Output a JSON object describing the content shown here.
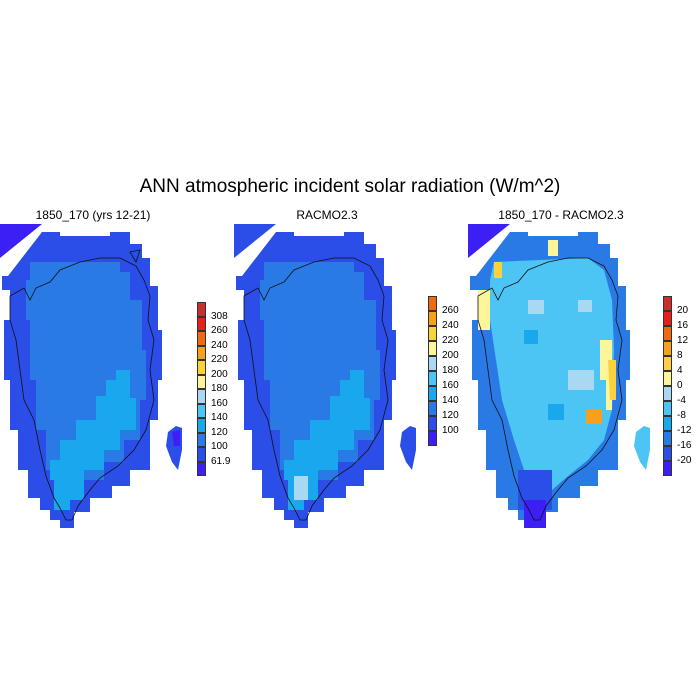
{
  "title": "ANN atmospheric incident solar radiation (W/m^2)",
  "panels": [
    {
      "title": "1850_170 (yrs 12-21)",
      "colorbar": {
        "colors": [
          "#3b1ff5",
          "#2b4de8",
          "#2a7ae6",
          "#19a8ee",
          "#4cc4f4",
          "#a9d8f2",
          "#fdf59a",
          "#fcd13e",
          "#f6a11d",
          "#f06a12",
          "#e8201b",
          "#c8302e"
        ],
        "labels": [
          "61.9",
          "100",
          "120",
          "140",
          "160",
          "180",
          "200",
          "220",
          "240",
          "260",
          "308"
        ]
      }
    },
    {
      "title": "RACMO2.3",
      "colorbar": {
        "colors": [
          "#3b1ff5",
          "#2b4de8",
          "#2a7ae6",
          "#19a8ee",
          "#4cc4f4",
          "#a9d8f2",
          "#fdf59a",
          "#fcd13e",
          "#f6a11d",
          "#f06a12",
          "#e8201b",
          "#c8302e"
        ],
        "labels": [
          "100",
          "120",
          "140",
          "160",
          "180",
          "200",
          "220",
          "240",
          "260"
        ]
      }
    },
    {
      "title": "1850_170 - RACMO2.3",
      "colorbar": {
        "colors": [
          "#3b1ff5",
          "#2b4de8",
          "#2a7ae6",
          "#19a8ee",
          "#4cc4f4",
          "#a9d8f2",
          "#fdf59a",
          "#fcd13e",
          "#f6a11d",
          "#f06a12",
          "#e8201b",
          "#c8302e"
        ],
        "labels": [
          "-20",
          "-16",
          "-12",
          "-8",
          "-4",
          "0",
          "4",
          "8",
          "12",
          "16",
          "20"
        ]
      }
    }
  ]
}
